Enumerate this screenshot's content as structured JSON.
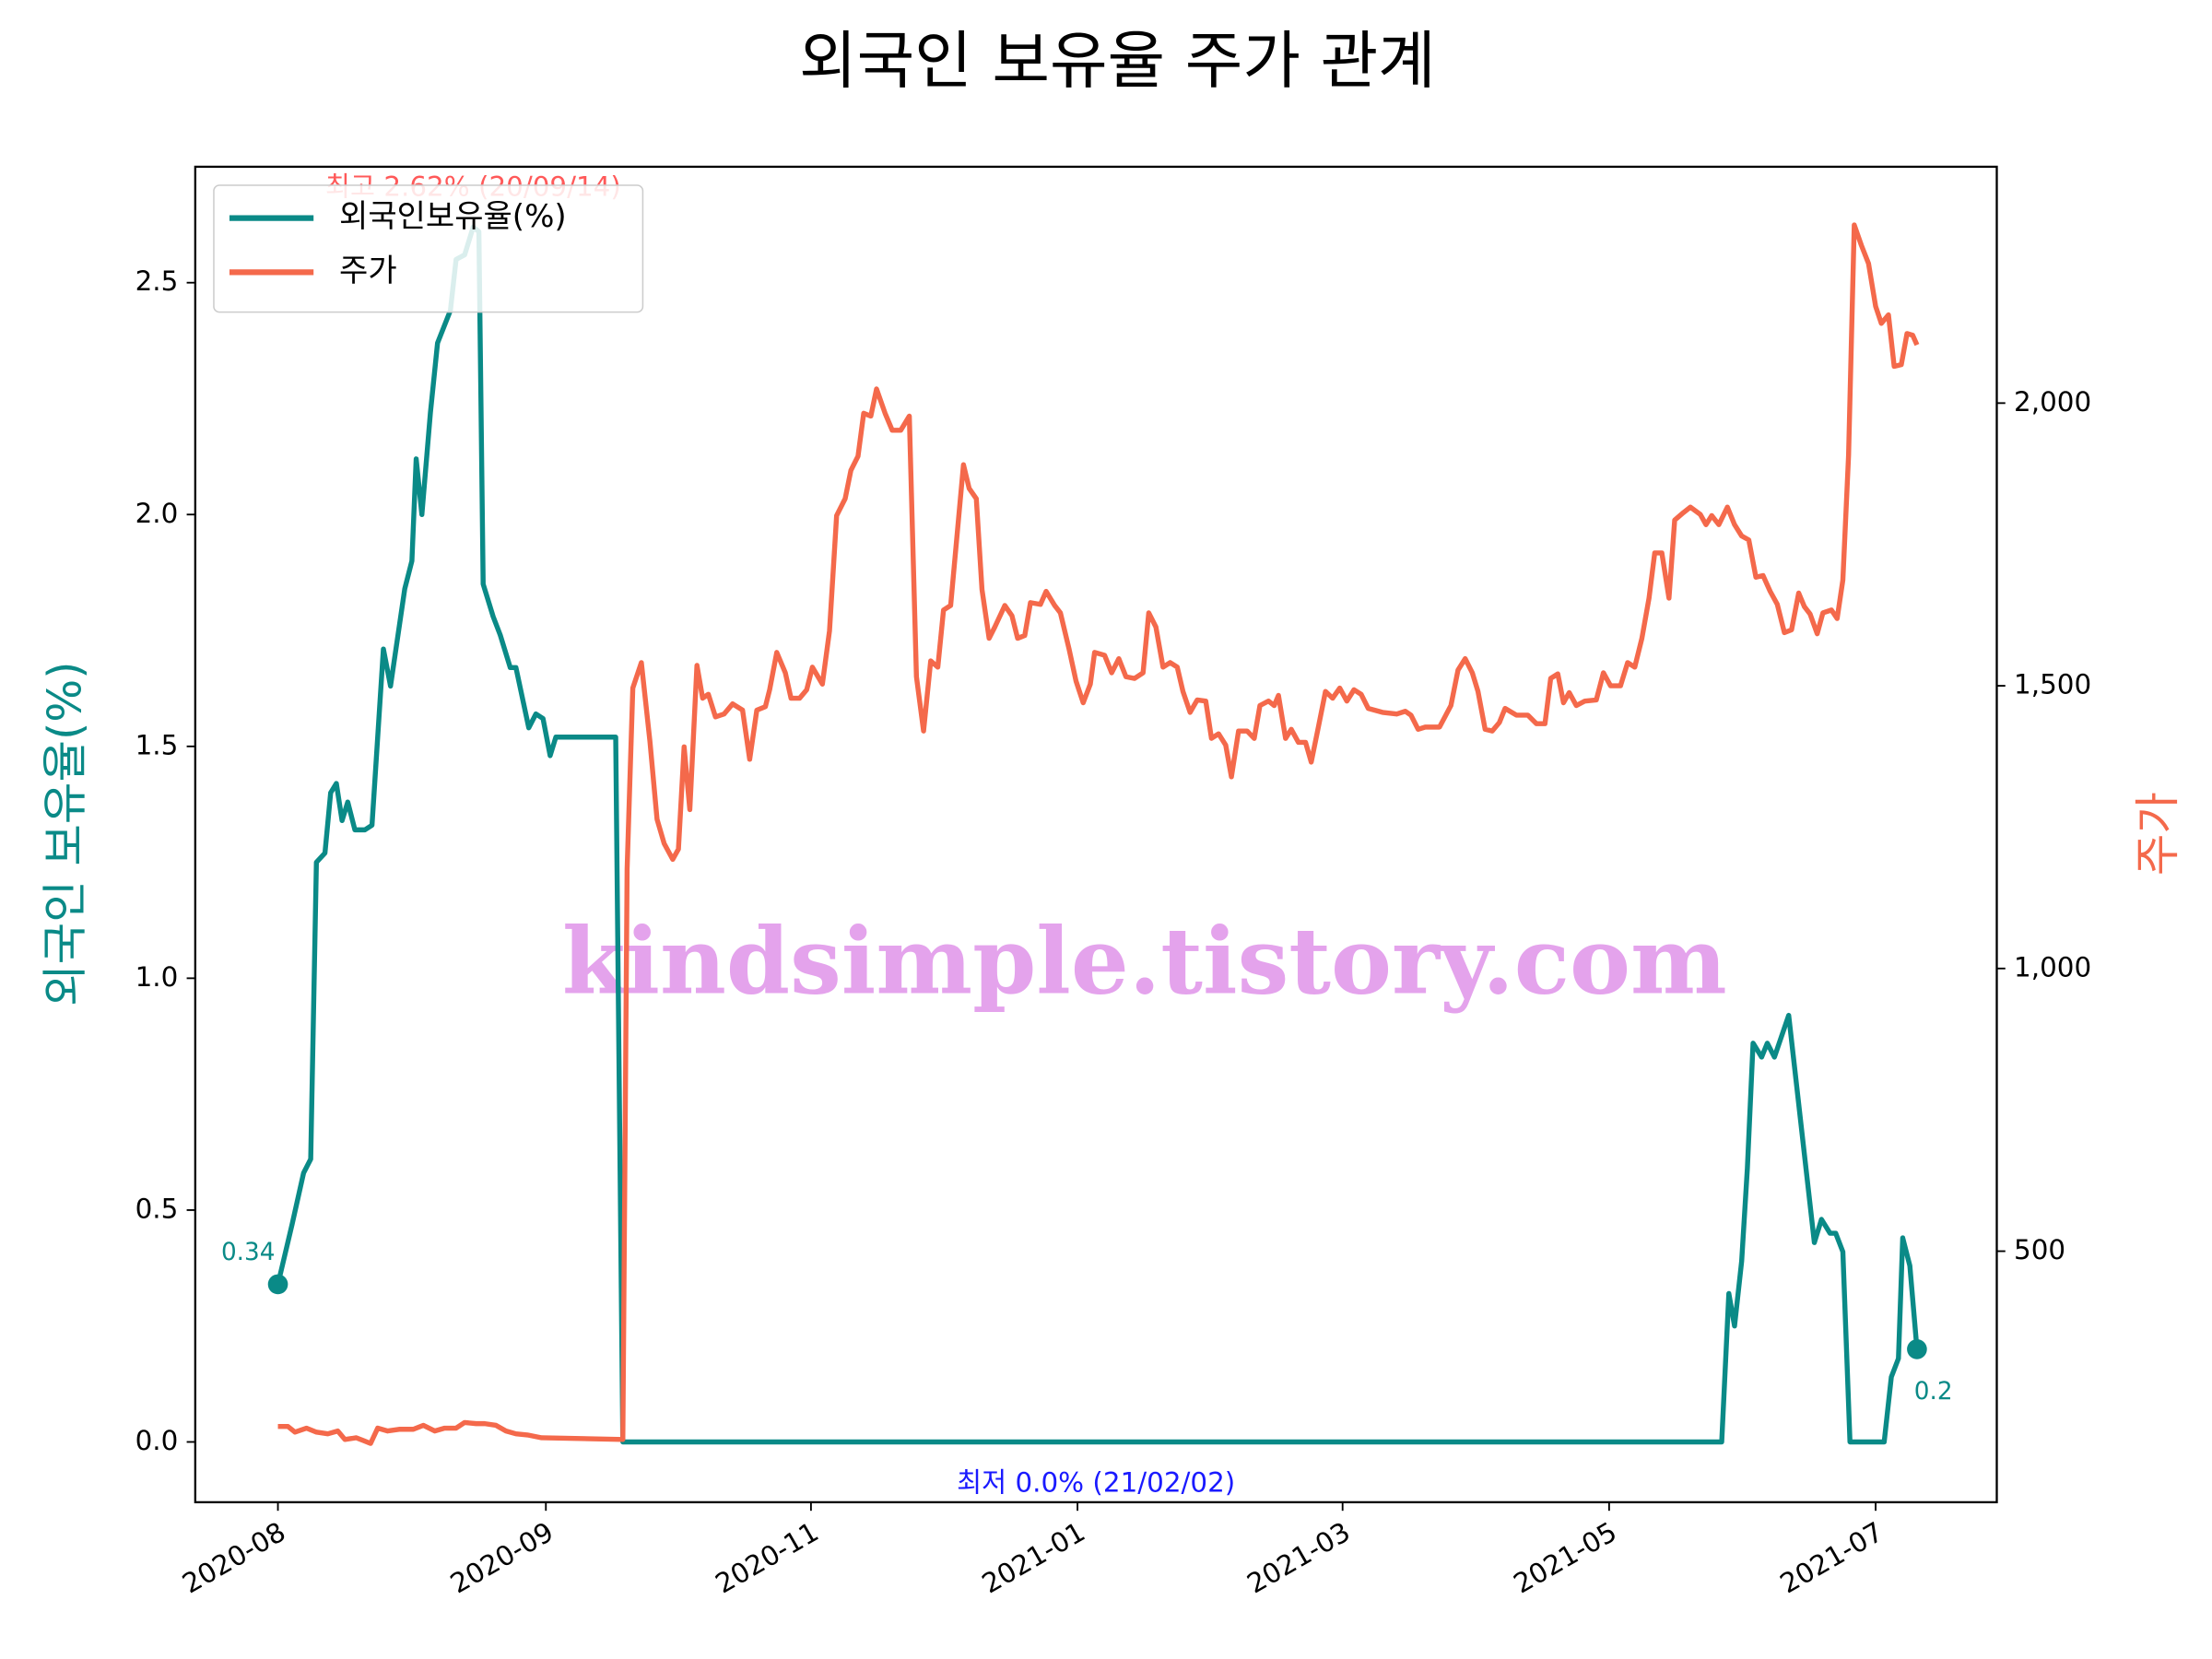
{
  "chart_data": {
    "type": "line",
    "title": "외국인 보유율 주가 관계",
    "y_label": "외국인 보유율(%)",
    "y2_label": "주가",
    "max_label": "최고 2.62% (20/09/14)",
    "min_label": "최저 0.0% (21/02/02)",
    "watermark": "kindsimple.tistory.com",
    "legend": "upper left",
    "xlim": [
      -58,
      1206
    ],
    "xticks": [
      {
        "value": 0,
        "label": "2020-08"
      },
      {
        "value": 188,
        "label": "2020-09"
      },
      {
        "value": 374,
        "label": "2020-11"
      },
      {
        "value": 561,
        "label": "2021-01"
      },
      {
        "value": 747,
        "label": "2021-03"
      },
      {
        "value": 934,
        "label": "2021-05"
      },
      {
        "value": 1121,
        "label": "2021-07"
      }
    ],
    "ylim": [
      -0.13,
      2.75
    ],
    "yticks": [
      {
        "value": 0,
        "label": "0.0"
      },
      0.5,
      {
        "value": 1,
        "label": "1.0"
      },
      1.5,
      {
        "value": 2,
        "label": "2.0"
      },
      2.5
    ],
    "y2lim": [
      56,
      2418
    ],
    "y2ticks": [
      500,
      {
        "value": 1000,
        "label": "1,000"
      },
      {
        "value": 1500,
        "label": "1,500"
      },
      {
        "value": 2000,
        "label": "2,000"
      }
    ],
    "series": [
      {
        "name": "외국인보유율(%)",
        "color": "#0a8a87",
        "x": [
          0,
          10,
          18,
          23,
          27,
          33,
          37,
          41,
          45,
          49,
          54,
          61,
          66,
          74,
          79,
          89,
          94,
          97,
          101,
          107,
          112,
          121,
          125,
          131,
          137,
          141,
          144,
          151,
          156,
          163,
          167,
          176,
          181,
          186,
          191,
          195,
          237,
          242,
          1013,
          1018,
          1022,
          1027,
          1031,
          1035,
          1041,
          1045,
          1050,
          1060,
          1078,
          1083,
          1089,
          1093,
          1098,
          1103,
          1127,
          1132,
          1137,
          1140,
          1145,
          1150
        ],
        "values": [
          0.34,
          0.47,
          0.58,
          0.61,
          1.25,
          1.27,
          1.4,
          1.42,
          1.34,
          1.38,
          1.32,
          1.32,
          1.33,
          1.71,
          1.63,
          1.84,
          1.9,
          2.12,
          2.0,
          2.22,
          2.37,
          2.44,
          2.55,
          2.56,
          2.62,
          2.61,
          1.85,
          1.78,
          1.74,
          1.67,
          1.67,
          1.54,
          1.57,
          1.56,
          1.48,
          1.52,
          1.52,
          0,
          0,
          0.32,
          0.25,
          0.39,
          0.59,
          0.86,
          0.83,
          0.86,
          0.83,
          0.92,
          0.43,
          0.48,
          0.45,
          0.45,
          0.41,
          0,
          0,
          0.14,
          0.18,
          0.44,
          0.38,
          0.2
        ]
      },
      {
        "name": "주가",
        "color": "#f4694b",
        "axis": "y2",
        "x": [
          0,
          7,
          12,
          20,
          27,
          35,
          42,
          47,
          55,
          60,
          65,
          70,
          77,
          85,
          95,
          102,
          110,
          117,
          125,
          131,
          139,
          145,
          153,
          160,
          167,
          175,
          185,
          242,
          245,
          249,
          255,
          261,
          266,
          271,
          277,
          281,
          285,
          289,
          294,
          298,
          302,
          307,
          313,
          319,
          326,
          331,
          336,
          342,
          345,
          350,
          356,
          360,
          366,
          371,
          375,
          382,
          387,
          392,
          398,
          402,
          407,
          411,
          416,
          420,
          426,
          431,
          437,
          443,
          448,
          453,
          458,
          463,
          467,
          472,
          481,
          485,
          490,
          494,
          499,
          503,
          510,
          515,
          519,
          524,
          528,
          535,
          539,
          545,
          549,
          555,
          560,
          565,
          570,
          573,
          580,
          585,
          590,
          595,
          601,
          607,
          611,
          616,
          621,
          626,
          631,
          635,
          640,
          645,
          651,
          655,
          660,
          665,
          669,
          674,
          680,
          685,
          689,
          695,
          699,
          702,
          707,
          711,
          716,
          721,
          725,
          730,
          735,
          740,
          745,
          750,
          755,
          760,
          765,
          775,
          785,
          791,
          795,
          800,
          805,
          815,
          823,
          828,
          833,
          838,
          842,
          847,
          852,
          857,
          861,
          869,
          877,
          883,
          889,
          893,
          898,
          902,
          906,
          911,
          917,
          925,
          930,
          935,
          942,
          947,
          952,
          957,
          962,
          966,
          971,
          976,
          980,
          986,
          991,
          998,
          1002,
          1006,
          1011,
          1017,
          1022,
          1027,
          1032,
          1037,
          1042,
          1047,
          1052,
          1057,
          1062,
          1067,
          1071,
          1075,
          1080,
          1084,
          1090,
          1094,
          1098,
          1102,
          1106,
          1111,
          1116,
          1121,
          1125,
          1130,
          1134,
          1139,
          1143,
          1147,
          1150
        ],
        "values": [
          190,
          190,
          180,
          187,
          180,
          177,
          182,
          167,
          170,
          165,
          160,
          187,
          182,
          185,
          185,
          192,
          182,
          187,
          187,
          197,
          195,
          195,
          192,
          182,
          177,
          175,
          170,
          167,
          1176,
          1496,
          1541,
          1402,
          1264,
          1221,
          1193,
          1211,
          1392,
          1281,
          1536,
          1478,
          1485,
          1445,
          1450,
          1468,
          1457,
          1370,
          1457,
          1463,
          1493,
          1559,
          1523,
          1478,
          1478,
          1493,
          1533,
          1503,
          1597,
          1801,
          1831,
          1881,
          1906,
          1982,
          1977,
          2025,
          1982,
          1952,
          1952,
          1977,
          1516,
          1420,
          1544,
          1533,
          1634,
          1642,
          1891,
          1849,
          1831,
          1670,
          1584,
          1604,
          1642,
          1624,
          1584,
          1589,
          1647,
          1644,
          1667,
          1642,
          1629,
          1566,
          1508,
          1470,
          1503,
          1559,
          1554,
          1523,
          1548,
          1516,
          1513,
          1523,
          1629,
          1604,
          1533,
          1541,
          1533,
          1490,
          1453,
          1475,
          1473,
          1407,
          1415,
          1395,
          1339,
          1420,
          1420,
          1407,
          1465,
          1473,
          1465,
          1483,
          1407,
          1423,
          1400,
          1400,
          1365,
          1427,
          1490,
          1478,
          1496,
          1473,
          1493,
          1485,
          1460,
          1453,
          1450,
          1455,
          1448,
          1423,
          1427,
          1427,
          1465,
          1528,
          1548,
          1523,
          1490,
          1423,
          1420,
          1435,
          1460,
          1448,
          1448,
          1433,
          1433,
          1513,
          1521,
          1470,
          1488,
          1465,
          1473,
          1475,
          1523,
          1500,
          1500,
          1541,
          1533,
          1584,
          1655,
          1735,
          1735,
          1655,
          1793,
          1806,
          1816,
          1803,
          1785,
          1801,
          1785,
          1816,
          1785,
          1765,
          1758,
          1692,
          1695,
          1667,
          1644,
          1594,
          1599,
          1664,
          1640,
          1627,
          1592,
          1629,
          1634,
          1619,
          1687,
          1907,
          2315,
          2279,
          2247,
          2171,
          2141,
          2156,
          2065,
          2068,
          2123,
          2120,
          2103
        ]
      }
    ]
  }
}
